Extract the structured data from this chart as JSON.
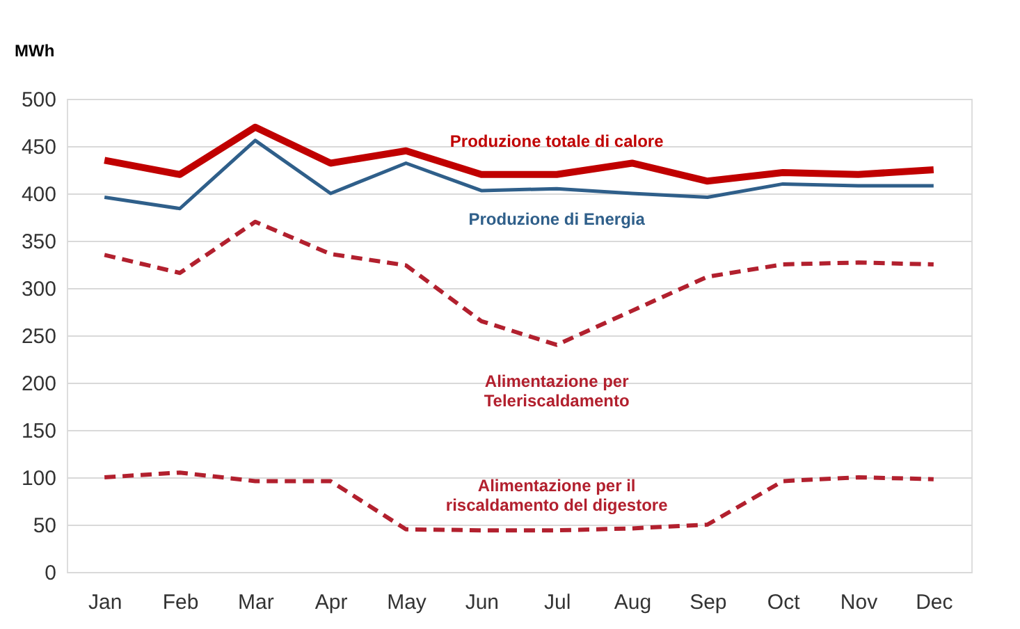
{
  "chart_data": {
    "type": "line",
    "ylabel": "MWh",
    "categories": [
      "Jan",
      "Feb",
      "Mar",
      "Apr",
      "May",
      "Jun",
      "Jul",
      "Aug",
      "Sep",
      "Oct",
      "Nov",
      "Dec"
    ],
    "series": [
      {
        "name": "Produzione totale di calore",
        "color": "#c00000",
        "line_style": "solid",
        "values": [
          435,
          420,
          470,
          432,
          445,
          420,
          420,
          432,
          413,
          422,
          420,
          425
        ]
      },
      {
        "name": "Produzione di Energia",
        "color": "#2f5f8a",
        "line_style": "solid",
        "values": [
          396,
          384,
          456,
          400,
          432,
          403,
          405,
          400,
          396,
          410,
          408,
          408
        ]
      },
      {
        "name": "Alimentazione per\nTeleriscaldamento",
        "color": "#b2202e",
        "line_style": "dashed",
        "values": [
          335,
          316,
          370,
          336,
          324,
          265,
          240,
          276,
          312,
          325,
          327,
          325
        ]
      },
      {
        "name": "Alimentazione per il\nriscaldamento del digestore",
        "color": "#b2202e",
        "line_style": "dashed",
        "values": [
          100,
          105,
          96,
          96,
          45,
          44,
          44,
          46,
          50,
          96,
          100,
          98
        ]
      }
    ],
    "ylim": [
      0,
      500
    ],
    "yticks": [
      0,
      50,
      100,
      150,
      200,
      250,
      300,
      350,
      400,
      450,
      500
    ],
    "grid": "y",
    "legend": false
  }
}
